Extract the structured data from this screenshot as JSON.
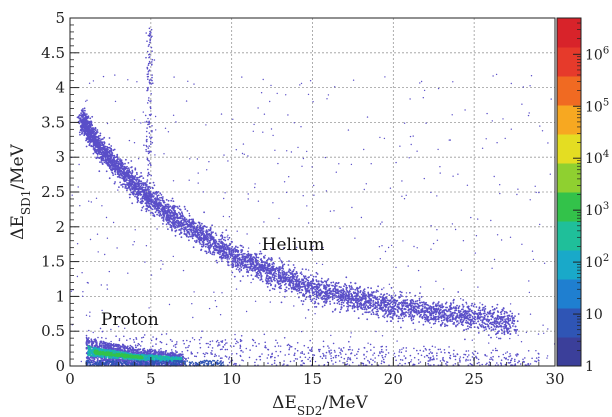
{
  "chart_data": {
    "type": "heatmap",
    "title": "",
    "xlabel": {
      "base": "ΔE",
      "sub": "SD2",
      "tail": "/MeV"
    },
    "ylabel": {
      "base": "ΔE",
      "sub": "SD1",
      "tail": "/MeV"
    },
    "xlim": [
      0,
      30
    ],
    "ylim": [
      0,
      5
    ],
    "x_ticks": [
      "0",
      "5",
      "10",
      "15",
      "20",
      "25",
      "30"
    ],
    "y_ticks": [
      "0",
      "0.5",
      "1",
      "1.5",
      "2",
      "2.5",
      "3",
      "3.5",
      "4",
      "4.5",
      "5"
    ],
    "grid": true,
    "annotations": [
      {
        "text": "Helium",
        "x": 13.8,
        "y": 1.67
      },
      {
        "text": "Proton",
        "x": 3.7,
        "y": 0.59
      }
    ],
    "bands": [
      {
        "name": "Helium",
        "points": [
          [
            0.8,
            3.5
          ],
          [
            2,
            3.1
          ],
          [
            4,
            2.6
          ],
          [
            6,
            2.2
          ],
          [
            8,
            1.9
          ],
          [
            10,
            1.6
          ],
          [
            12,
            1.4
          ],
          [
            15,
            1.1
          ],
          [
            18,
            0.95
          ],
          [
            21,
            0.82
          ],
          [
            24,
            0.72
          ],
          [
            27.5,
            0.62
          ]
        ]
      },
      {
        "name": "Proton",
        "points": [
          [
            1,
            0.42
          ],
          [
            2,
            0.35
          ],
          [
            4,
            0.25
          ],
          [
            6,
            0.2
          ],
          [
            7,
            0.17
          ]
        ]
      }
    ],
    "colorbar": {
      "scale": "log",
      "range": [
        1,
        5000000
      ],
      "tick_labels": [
        {
          "base": "1",
          "exp": ""
        },
        {
          "base": "10",
          "exp": ""
        },
        {
          "base": "10",
          "exp": "2"
        },
        {
          "base": "10",
          "exp": "3"
        },
        {
          "base": "10",
          "exp": "4"
        },
        {
          "base": "10",
          "exp": "5"
        },
        {
          "base": "10",
          "exp": "6"
        }
      ],
      "colors": [
        "#3b3f9a",
        "#2f55b5",
        "#1f7fd0",
        "#19a9c9",
        "#1fbf9a",
        "#33c24a",
        "#8fd030",
        "#e4dd22",
        "#f7a821",
        "#f06a22",
        "#e63a2b",
        "#d8232a"
      ]
    },
    "point_color": "#5a4fc8"
  }
}
